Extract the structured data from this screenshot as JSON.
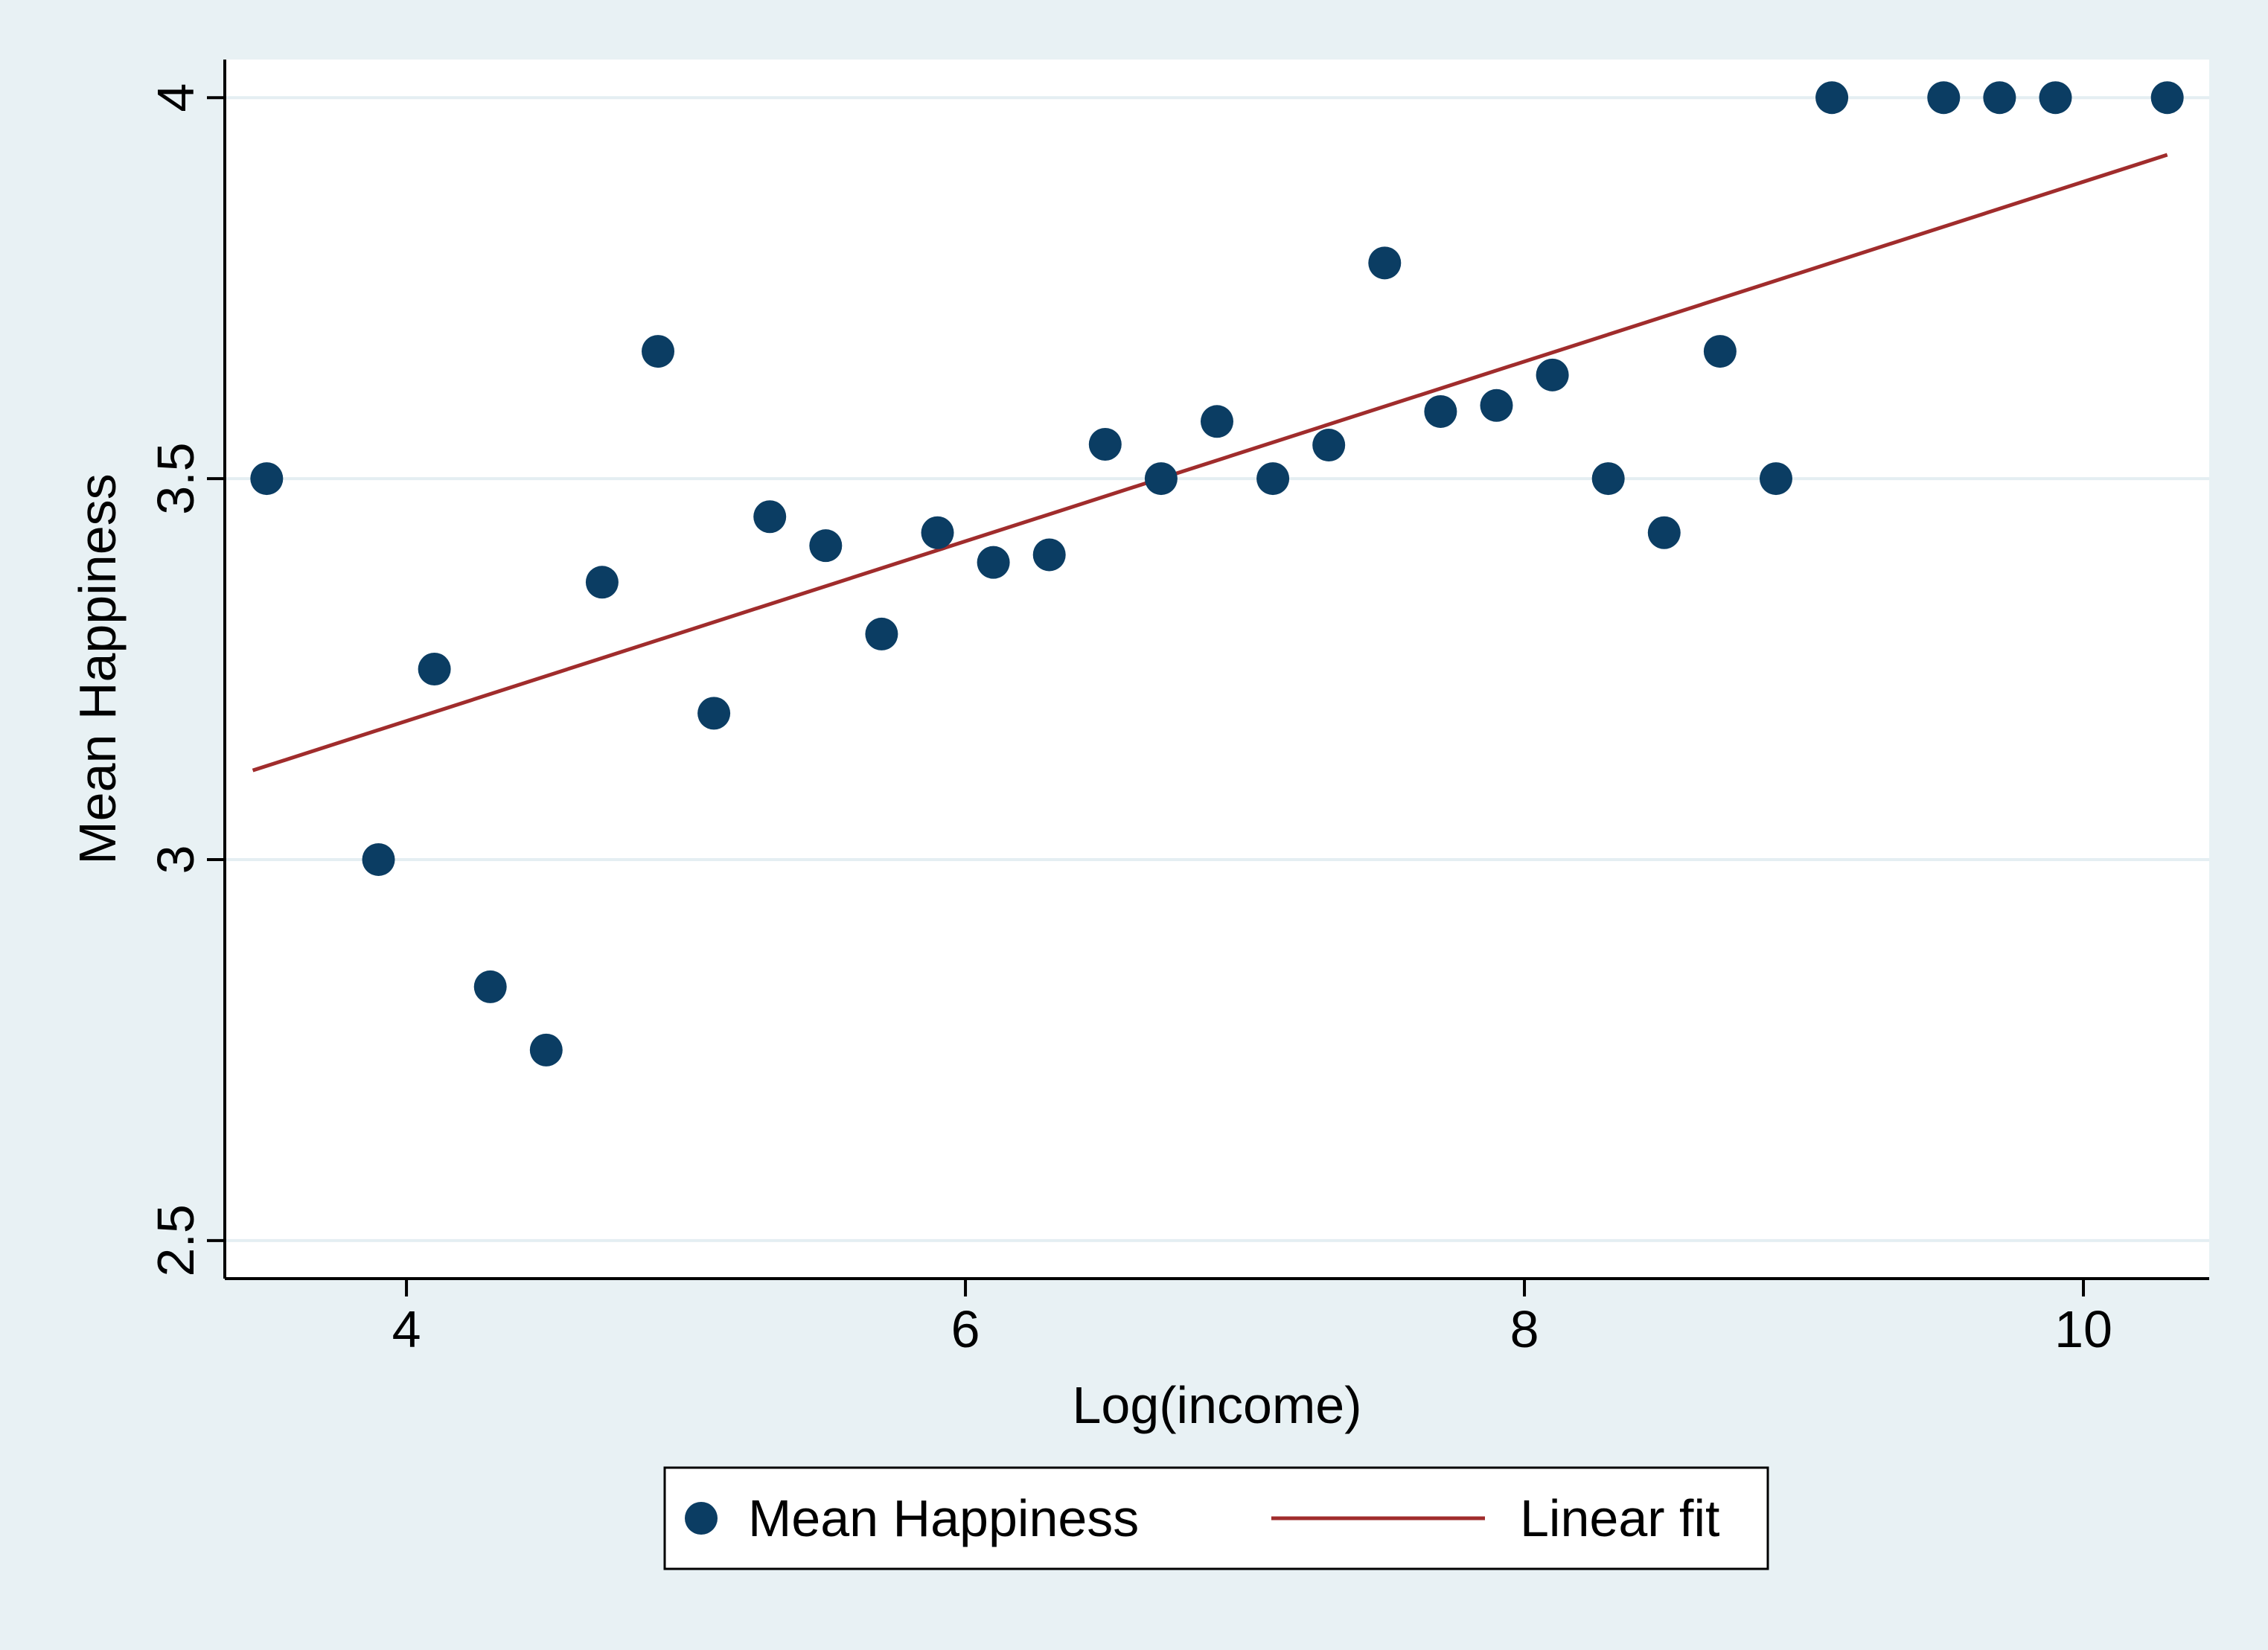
{
  "chart_data": {
    "type": "scatter",
    "title": "",
    "xlabel": "Log(income)",
    "ylabel": "Mean Happiness",
    "xlim": [
      3.35,
      10.45
    ],
    "ylim": [
      2.45,
      4.05
    ],
    "xticks": [
      4,
      6,
      8,
      10
    ],
    "yticks": [
      2.5,
      3,
      3.5,
      4
    ],
    "xtick_labels": [
      "4",
      "6",
      "8",
      "10"
    ],
    "ytick_labels": [
      "2.5",
      "3",
      "3.5",
      "4"
    ],
    "grid": "horizontal",
    "legend_position": "bottom",
    "series": [
      {
        "name": "Mean Happiness",
        "kind": "scatter",
        "color": "#0b3d63",
        "x": [
          3.5,
          3.9,
          4.1,
          4.3,
          4.5,
          4.7,
          4.9,
          5.1,
          5.3,
          5.5,
          5.7,
          5.9,
          6.1,
          6.3,
          6.5,
          6.7,
          6.9,
          7.1,
          7.3,
          7.5,
          7.7,
          7.9,
          8.1,
          8.3,
          8.5,
          8.7,
          8.9,
          9.1,
          9.5,
          9.7,
          9.9,
          10.3
        ],
        "y": [
          3.5,
          3.0,
          3.25,
          2.833,
          2.75,
          3.364,
          3.667,
          3.192,
          3.45,
          3.412,
          3.296,
          3.429,
          3.39,
          3.4,
          3.545,
          3.5,
          3.575,
          3.5,
          3.544,
          3.783,
          3.588,
          3.596,
          3.636,
          3.5,
          3.429,
          3.667,
          3.5,
          4.0,
          4.0,
          4.0,
          4.0,
          4.0
        ]
      },
      {
        "name": "Linear fit",
        "kind": "line",
        "color": "#a02c2c",
        "x": [
          3.45,
          10.3
        ],
        "y": [
          3.117,
          3.925
        ]
      }
    ]
  }
}
